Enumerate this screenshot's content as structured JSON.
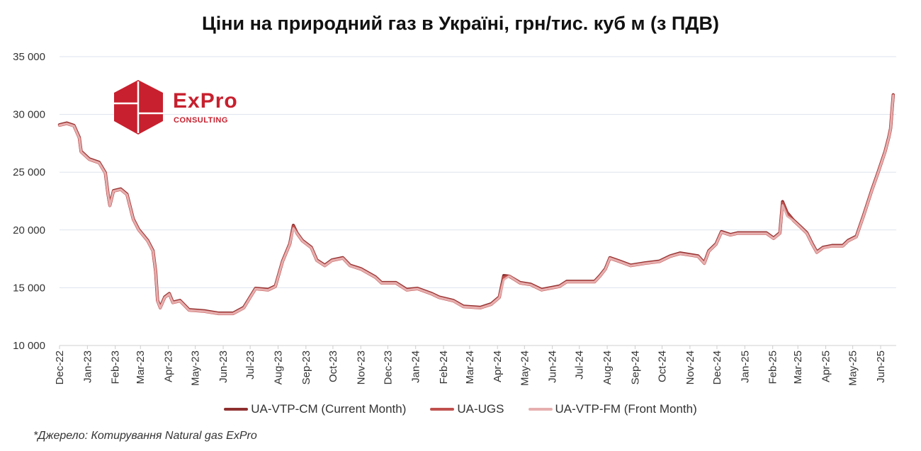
{
  "chart_data": {
    "type": "line",
    "title": "Ціни на природний газ в Україні, грн/тис. куб м (з ПДВ)",
    "xlabel": "",
    "ylabel": "",
    "ylim": [
      10000,
      35000
    ],
    "xlim": [
      "2022-12-01",
      "2025-06-20"
    ],
    "grid": true,
    "legend_position": "bottom",
    "y_ticks": [
      "10 000",
      "15 000",
      "20 000",
      "25 000",
      "30 000",
      "35 000"
    ],
    "y_tick_values": [
      10000,
      15000,
      20000,
      25000,
      30000,
      35000
    ],
    "x_ticks": [
      "Dec-22",
      "Jan-23",
      "Feb-23",
      "Mar-23",
      "Apr-23",
      "May-23",
      "Jun-23",
      "Jul-23",
      "Aug-23",
      "Sep-23",
      "Oct-23",
      "Nov-23",
      "Dec-23",
      "Jan-24",
      "Feb-24",
      "Mar-24",
      "Apr-24",
      "May-24",
      "Jun-24",
      "Jul-24",
      "Aug-24",
      "Sep-24",
      "Oct-24",
      "Nov-24",
      "Dec-24",
      "Jan-25",
      "Feb-25",
      "Mar-25",
      "Apr-25",
      "May-25",
      "Jun-25"
    ],
    "x_tick_dates": [
      "2022-12-01",
      "2023-01-01",
      "2023-02-01",
      "2023-03-01",
      "2023-04-01",
      "2023-05-01",
      "2023-06-01",
      "2023-07-01",
      "2023-08-01",
      "2023-09-01",
      "2023-10-01",
      "2023-11-01",
      "2023-12-01",
      "2024-01-01",
      "2024-02-01",
      "2024-03-01",
      "2024-04-01",
      "2024-05-01",
      "2024-06-01",
      "2024-07-01",
      "2024-08-01",
      "2024-09-01",
      "2024-10-01",
      "2024-11-01",
      "2024-12-01",
      "2025-01-01",
      "2025-02-01",
      "2025-03-01",
      "2025-04-01",
      "2025-05-01",
      "2025-06-01"
    ],
    "x": [
      "2022-12-01",
      "2022-12-09",
      "2022-12-17",
      "2022-12-23",
      "2022-12-25",
      "2023-01-03",
      "2023-01-14",
      "2023-01-21",
      "2023-01-24",
      "2023-01-26",
      "2023-01-30",
      "2023-02-07",
      "2023-02-14",
      "2023-02-21",
      "2023-02-27",
      "2023-03-09",
      "2023-03-15",
      "2023-03-18",
      "2023-03-20",
      "2023-03-23",
      "2023-03-28",
      "2023-04-02",
      "2023-04-06",
      "2023-04-14",
      "2023-04-19",
      "2023-04-24",
      "2023-05-11",
      "2023-05-27",
      "2023-06-12",
      "2023-06-24",
      "2023-07-01",
      "2023-07-07",
      "2023-07-21",
      "2023-07-29",
      "2023-08-06",
      "2023-08-14",
      "2023-08-18",
      "2023-08-22",
      "2023-08-28",
      "2023-09-07",
      "2023-09-13",
      "2023-09-22",
      "2023-09-30",
      "2023-10-12",
      "2023-10-20",
      "2023-11-01",
      "2023-11-17",
      "2023-11-24",
      "2023-12-10",
      "2023-12-22",
      "2024-01-03",
      "2024-01-19",
      "2024-01-27",
      "2024-02-12",
      "2024-02-23",
      "2024-03-13",
      "2024-03-25",
      "2024-04-03",
      "2024-04-08",
      "2024-04-14",
      "2024-04-26",
      "2024-05-08",
      "2024-05-20",
      "2024-06-09",
      "2024-06-17",
      "2024-07-18",
      "2024-07-24",
      "2024-07-30",
      "2024-08-04",
      "2024-08-15",
      "2024-08-27",
      "2024-09-12",
      "2024-09-28",
      "2024-10-10",
      "2024-10-21",
      "2024-11-10",
      "2024-11-17",
      "2024-11-22",
      "2024-11-30",
      "2024-12-06",
      "2024-12-16",
      "2024-12-24",
      "2025-01-25",
      "2025-02-02",
      "2025-02-09",
      "2025-02-12",
      "2025-02-17",
      "2025-02-24",
      "2025-03-03",
      "2025-03-11",
      "2025-03-17",
      "2025-03-22",
      "2025-03-29",
      "2025-04-08",
      "2025-04-20",
      "2025-04-26",
      "2025-05-05",
      "2025-05-13",
      "2025-05-22",
      "2025-05-29",
      "2025-06-06",
      "2025-06-10",
      "2025-06-12",
      "2025-06-15"
    ],
    "series": [
      {
        "name": "UA-VTP-CM (Current Month)",
        "color": "#8e2f2f",
        "values": [
          29100,
          29250,
          29050,
          28000,
          26800,
          26150,
          25850,
          24950,
          23100,
          22150,
          23400,
          23550,
          23100,
          20950,
          20050,
          19100,
          18200,
          16350,
          13900,
          13300,
          14200,
          14500,
          13750,
          13900,
          13500,
          13100,
          13000,
          12800,
          12800,
          13300,
          14200,
          14950,
          14850,
          15150,
          17300,
          18800,
          20400,
          19750,
          19100,
          18500,
          17400,
          16950,
          17400,
          17600,
          16950,
          16650,
          15950,
          15450,
          15450,
          14850,
          14950,
          14500,
          14200,
          13900,
          13400,
          13300,
          13600,
          14200,
          16050,
          16000,
          15450,
          15300,
          14850,
          15150,
          15550,
          15550,
          16050,
          16650,
          17600,
          17300,
          16950,
          17150,
          17300,
          17750,
          18000,
          17750,
          17150,
          18200,
          18800,
          19850,
          19600,
          19750,
          19750,
          19300,
          19750,
          22450,
          21500,
          20850,
          20350,
          19750,
          18800,
          18100,
          18500,
          18650,
          18650,
          19100,
          19450,
          21250,
          23400,
          24950,
          26800,
          28000,
          28750,
          31700
        ]
      },
      {
        "name": "UA-UGS",
        "color": "#c0504d",
        "values": [
          29050,
          29200,
          29000,
          27950,
          26750,
          26100,
          25800,
          24900,
          23050,
          22100,
          23350,
          23500,
          23050,
          20900,
          20000,
          19050,
          18150,
          16300,
          13850,
          13250,
          14150,
          14450,
          13700,
          13850,
          13450,
          13050,
          12950,
          12750,
          12750,
          13250,
          14150,
          14900,
          14800,
          15100,
          17250,
          18750,
          20300,
          19700,
          19050,
          18450,
          17350,
          16900,
          17350,
          17550,
          16900,
          16600,
          15900,
          15400,
          15400,
          14800,
          14900,
          14450,
          14150,
          13850,
          13350,
          13250,
          13550,
          14150,
          15900,
          16000,
          15400,
          15250,
          14800,
          15100,
          15500,
          15500,
          16000,
          16600,
          17550,
          17250,
          16900,
          17100,
          17250,
          17700,
          17950,
          17700,
          17100,
          18150,
          18750,
          19800,
          19550,
          19700,
          19700,
          19250,
          19700,
          22350,
          21400,
          20800,
          20300,
          19700,
          18750,
          18050,
          18450,
          18600,
          18600,
          19050,
          19400,
          21200,
          23350,
          24900,
          26750,
          27950,
          28700,
          31650
        ]
      },
      {
        "name": "UA-VTP-FM (Front Month)",
        "color": "#e6afaf",
        "values": [
          29050,
          29200,
          29000,
          27950,
          26750,
          26100,
          25800,
          24900,
          23050,
          22100,
          23350,
          23500,
          23050,
          20900,
          20000,
          19050,
          18150,
          16300,
          13850,
          13250,
          14150,
          14450,
          13700,
          13850,
          13450,
          13050,
          12950,
          12750,
          12750,
          13250,
          14150,
          14900,
          14800,
          15100,
          17250,
          18750,
          20150,
          19700,
          19050,
          18450,
          17350,
          16900,
          17350,
          17550,
          16900,
          16600,
          15900,
          15400,
          15400,
          14800,
          14900,
          14450,
          14150,
          13850,
          13350,
          13250,
          13550,
          14150,
          15700,
          16000,
          15400,
          15250,
          14800,
          15100,
          15500,
          15500,
          16000,
          16600,
          17550,
          17250,
          16900,
          17100,
          17250,
          17700,
          17950,
          17700,
          17100,
          18150,
          18750,
          19800,
          19550,
          19700,
          19700,
          19250,
          19700,
          22150,
          21200,
          20800,
          20300,
          19700,
          18750,
          18050,
          18450,
          18600,
          18600,
          19050,
          19400,
          21200,
          23350,
          24900,
          26750,
          27950,
          28700,
          31650
        ]
      }
    ],
    "source": "*Джерело: Котирування Natural gas ExPro"
  },
  "logo": {
    "name": "ExPro",
    "subtitle": "CONSULTING",
    "color": "#c8202e"
  }
}
